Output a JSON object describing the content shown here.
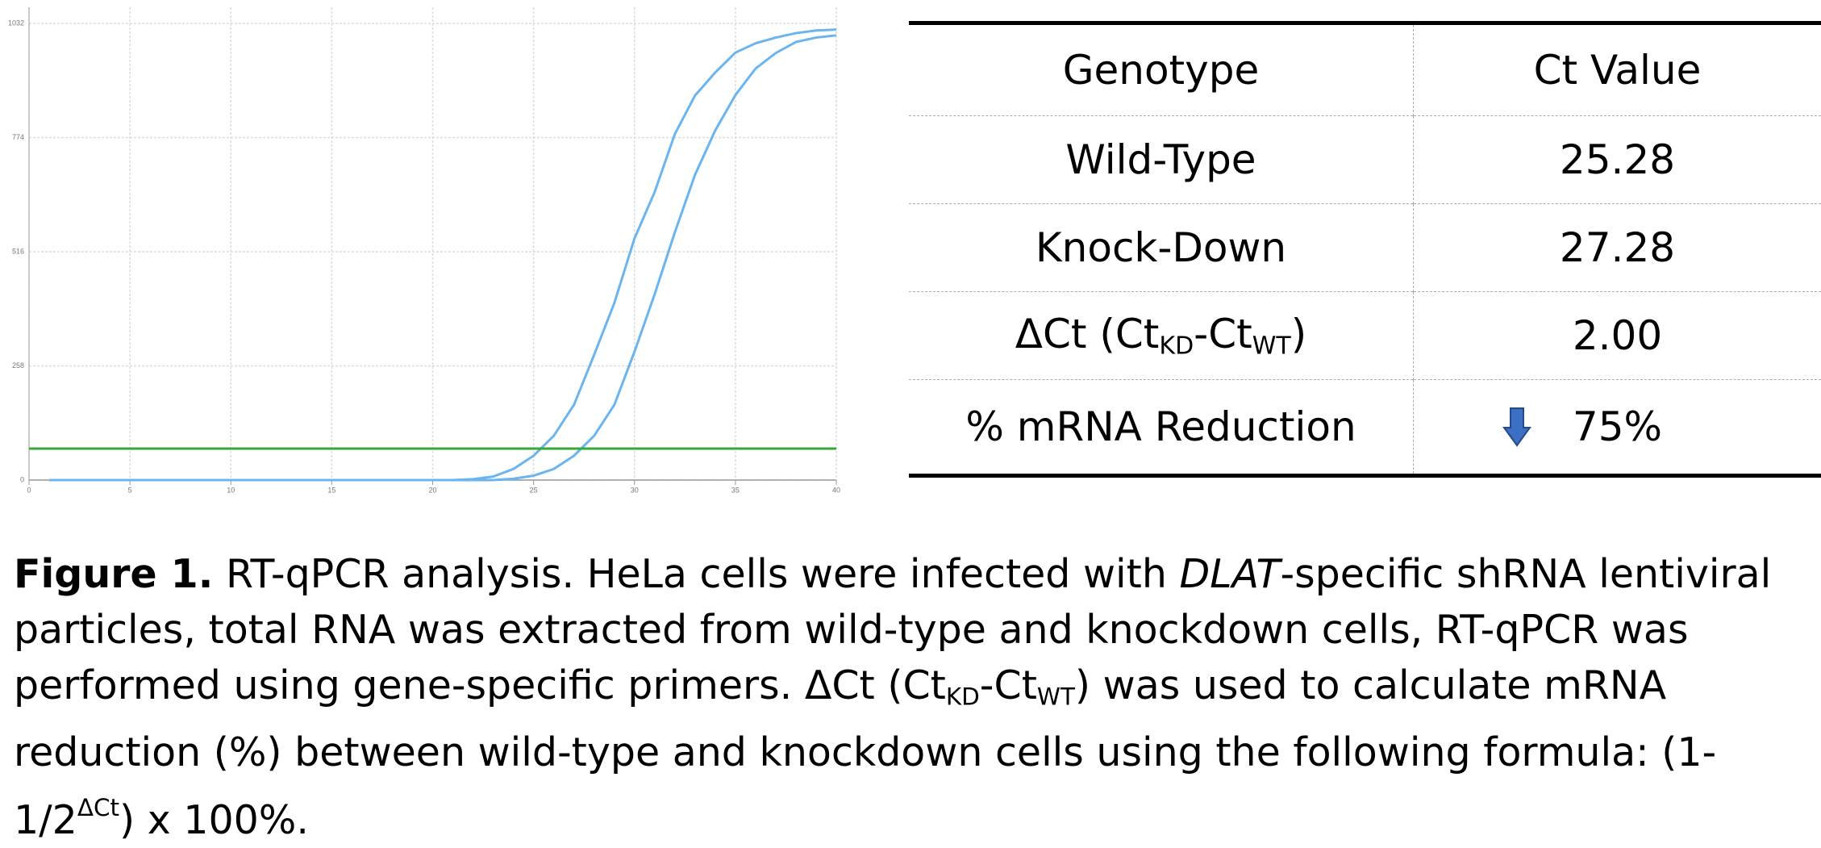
{
  "chart_data": {
    "type": "line",
    "x": [
      1,
      2,
      3,
      4,
      5,
      6,
      7,
      8,
      9,
      10,
      11,
      12,
      13,
      14,
      15,
      16,
      17,
      18,
      19,
      20,
      21,
      22,
      23,
      24,
      25,
      26,
      27,
      28,
      29,
      30,
      31,
      32,
      33,
      34,
      35,
      36,
      37,
      38,
      39,
      40
    ],
    "series": [
      {
        "color": "#6ab4f0",
        "values": [
          0,
          0,
          0,
          0,
          0,
          0,
          0,
          0,
          0,
          0,
          0,
          0,
          0,
          0,
          0,
          0,
          0,
          0,
          0,
          0,
          0,
          2,
          8,
          25,
          55,
          100,
          170,
          283,
          400,
          546,
          651,
          782,
          869,
          921,
          966,
          987,
          1000,
          1010,
          1016,
          1018
        ]
      },
      {
        "color": "#6ab4f0",
        "values": [
          0,
          0,
          0,
          0,
          0,
          0,
          0,
          0,
          0,
          0,
          0,
          0,
          0,
          0,
          0,
          0,
          0,
          0,
          0,
          0,
          0,
          0,
          0,
          3,
          10,
          25,
          55,
          100,
          170,
          290,
          420,
          560,
          690,
          790,
          870,
          930,
          965,
          990,
          1000,
          1005
        ]
      }
    ],
    "threshold": 71,
    "threshold_color": "#3aa53a",
    "xlim": [
      0,
      40
    ],
    "xticks": [
      0,
      5,
      10,
      15,
      20,
      25,
      30,
      35,
      40
    ],
    "ylim": [
      0,
      1032
    ],
    "yticks": [
      0,
      258,
      516,
      774,
      1032
    ],
    "grid": true
  },
  "table": {
    "header": [
      "Genotype",
      "Ct Value"
    ],
    "rows": [
      [
        [
          "Wild-Type"
        ],
        [
          "25.28"
        ]
      ],
      [
        [
          "Knock-Down"
        ],
        [
          "27.28"
        ]
      ],
      [
        [
          "ΔCt (Ct",
          "KD",
          "-Ct",
          "WT",
          ")"
        ],
        [
          "2.00"
        ]
      ],
      [
        [
          "% mRNA Reduction"
        ],
        [
          "75%"
        ]
      ]
    ]
  },
  "caption": {
    "segments": [
      "Figure 1.",
      " RT-qPCR analysis. HeLa cells were infected with ",
      "DLAT",
      "-specific shRNA lentiviral particles, total RNA was extracted from wild-type and knockdown cells, RT-qPCR was performed using gene-specific primers. ΔCt (Ct",
      "KD",
      "-Ct",
      "WT",
      ") was used to calculate mRNA reduction (%) between wild-type and knockdown cells using the following formula: (1-1/2",
      "ΔCt",
      ") x 100%."
    ]
  }
}
